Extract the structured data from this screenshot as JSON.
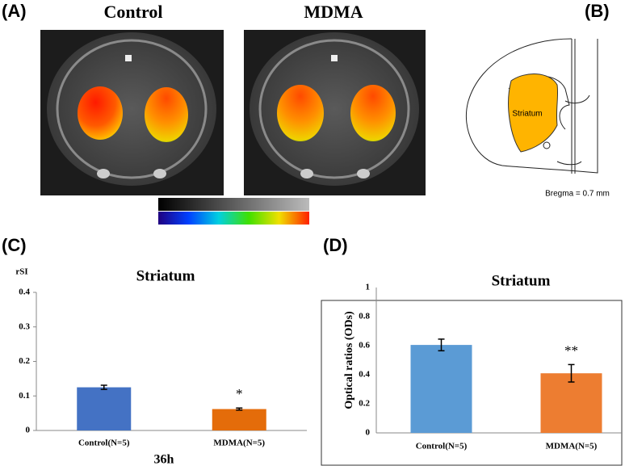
{
  "panels": {
    "a": {
      "label": "(A)",
      "left_title": "Control",
      "right_title": "MDMA"
    },
    "b": {
      "label": "(B)",
      "region": "Striatum",
      "note": "Bregma = 0.7 mm"
    },
    "c": {
      "label": "(C)"
    },
    "d": {
      "label": "(D)"
    }
  },
  "chart_data": [
    {
      "type": "bar",
      "title": "Striatum",
      "ylabel": "rSI",
      "xlabel": "36h",
      "categories": [
        "Control(N=5)",
        "MDMA(N=5)"
      ],
      "values": [
        0.125,
        0.062
      ],
      "errors": [
        0.006,
        0.003
      ],
      "colors": [
        "#4472c4",
        "#e46c0a"
      ],
      "ylim": [
        0,
        0.4
      ],
      "yticks": [
        0,
        0.1,
        0.2,
        0.3,
        0.4
      ],
      "annotations": [
        {
          "text": "*",
          "x": "MDMA(N=5)"
        }
      ]
    },
    {
      "type": "bar",
      "title": "Striatum",
      "ylabel": "Optical ratios (ODs)",
      "categories": [
        "Control(N=5)",
        "MDMA(N=5)"
      ],
      "values": [
        0.605,
        0.41
      ],
      "errors": [
        0.04,
        0.06
      ],
      "colors": [
        "#5b9bd5",
        "#ed7d31"
      ],
      "ylim": [
        0,
        1
      ],
      "yticks": [
        0,
        0.2,
        0.4,
        0.6,
        0.8,
        1
      ],
      "annotations": [
        {
          "text": "**",
          "x": "MDMA(N=5)"
        }
      ]
    }
  ]
}
